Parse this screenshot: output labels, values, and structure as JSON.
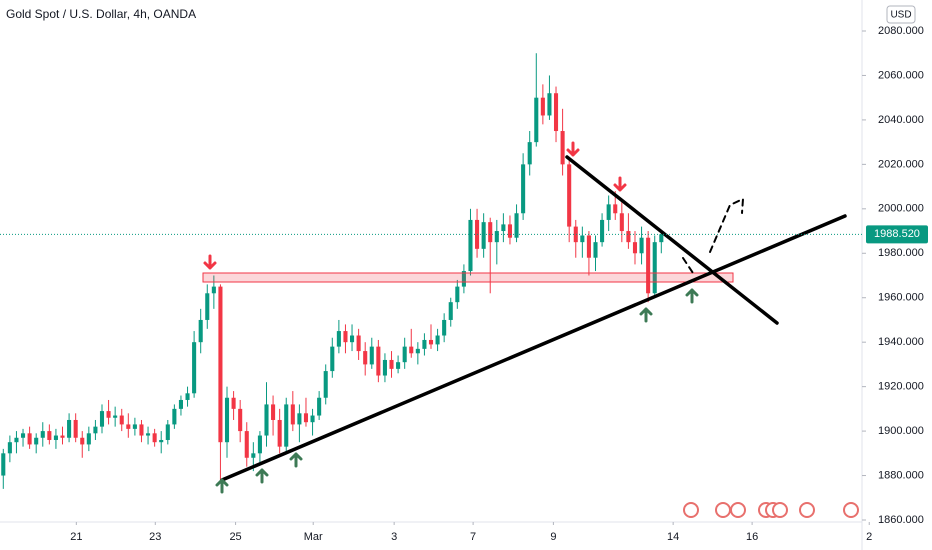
{
  "chart_data": {
    "type": "candlestick",
    "title": "Gold Spot / U.S. Dollar, 4h, OANDA",
    "currency": "USD",
    "up_color": "#089981",
    "down_color": "#f23645",
    "candles": [
      [
        1880,
        1892,
        1874,
        1890
      ],
      [
        1890,
        1898,
        1886,
        1895
      ],
      [
        1895,
        1900,
        1890,
        1897
      ],
      [
        1897,
        1901,
        1893,
        1899
      ],
      [
        1899,
        1902,
        1892,
        1894
      ],
      [
        1894,
        1899,
        1890,
        1897
      ],
      [
        1897,
        1904,
        1893,
        1900
      ],
      [
        1900,
        1903,
        1894,
        1896
      ],
      [
        1896,
        1901,
        1892,
        1898
      ],
      [
        1898,
        1902,
        1894,
        1897
      ],
      [
        1897,
        1908,
        1895,
        1905
      ],
      [
        1905,
        1908,
        1895,
        1897
      ],
      [
        1897,
        1900,
        1888,
        1894
      ],
      [
        1894,
        1902,
        1891,
        1899
      ],
      [
        1899,
        1905,
        1896,
        1902
      ],
      [
        1902,
        1912,
        1899,
        1909
      ],
      [
        1909,
        1914,
        1903,
        1906
      ],
      [
        1906,
        1911,
        1902,
        1907
      ],
      [
        1907,
        1910,
        1900,
        1903
      ],
      [
        1903,
        1908,
        1897,
        1901
      ],
      [
        1901,
        1906,
        1898,
        1903
      ],
      [
        1903,
        1905,
        1895,
        1898
      ],
      [
        1898,
        1902,
        1894,
        1899
      ],
      [
        1899,
        1901,
        1893,
        1895
      ],
      [
        1895,
        1900,
        1890,
        1896
      ],
      [
        1896,
        1905,
        1894,
        1903
      ],
      [
        1903,
        1912,
        1901,
        1910
      ],
      [
        1910,
        1916,
        1907,
        1914
      ],
      [
        1914,
        1920,
        1911,
        1917
      ],
      [
        1917,
        1945,
        1915,
        1940
      ],
      [
        1940,
        1955,
        1935,
        1950
      ],
      [
        1950,
        1966,
        1946,
        1962
      ],
      [
        1962,
        1970,
        1955,
        1965
      ],
      [
        1965,
        1966,
        1878,
        1895
      ],
      [
        1895,
        1920,
        1888,
        1915
      ],
      [
        1915,
        1918,
        1905,
        1910
      ],
      [
        1910,
        1914,
        1895,
        1900
      ],
      [
        1900,
        1904,
        1884,
        1888
      ],
      [
        1888,
        1895,
        1882,
        1890
      ],
      [
        1890,
        1900,
        1886,
        1898
      ],
      [
        1898,
        1922,
        1893,
        1912
      ],
      [
        1912,
        1916,
        1898,
        1905
      ],
      [
        1905,
        1910,
        1890,
        1893
      ],
      [
        1893,
        1915,
        1890,
        1912
      ],
      [
        1912,
        1918,
        1900,
        1903
      ],
      [
        1903,
        1912,
        1895,
        1908
      ],
      [
        1908,
        1915,
        1902,
        1904
      ],
      [
        1904,
        1910,
        1898,
        1907
      ],
      [
        1907,
        1918,
        1905,
        1915
      ],
      [
        1915,
        1930,
        1912,
        1927
      ],
      [
        1927,
        1942,
        1924,
        1938
      ],
      [
        1938,
        1950,
        1935,
        1945
      ],
      [
        1945,
        1948,
        1935,
        1940
      ],
      [
        1940,
        1948,
        1936,
        1943
      ],
      [
        1943,
        1946,
        1932,
        1936
      ],
      [
        1936,
        1940,
        1925,
        1930
      ],
      [
        1930,
        1942,
        1928,
        1938
      ],
      [
        1938,
        1941,
        1922,
        1925
      ],
      [
        1925,
        1935,
        1922,
        1932
      ],
      [
        1932,
        1936,
        1924,
        1928
      ],
      [
        1928,
        1934,
        1926,
        1931
      ],
      [
        1931,
        1942,
        1928,
        1938
      ],
      [
        1938,
        1946,
        1933,
        1935
      ],
      [
        1935,
        1940,
        1930,
        1937
      ],
      [
        1937,
        1944,
        1934,
        1941
      ],
      [
        1941,
        1948,
        1937,
        1939
      ],
      [
        1939,
        1946,
        1936,
        1943
      ],
      [
        1943,
        1953,
        1940,
        1950
      ],
      [
        1950,
        1960,
        1947,
        1958
      ],
      [
        1958,
        1968,
        1955,
        1965
      ],
      [
        1965,
        1975,
        1962,
        1972
      ],
      [
        1972,
        2000,
        1970,
        1995
      ],
      [
        1995,
        2000,
        1978,
        1982
      ],
      [
        1982,
        1998,
        1978,
        1994
      ],
      [
        1994,
        1996,
        1962,
        1985
      ],
      [
        1985,
        1995,
        1975,
        1990
      ],
      [
        1990,
        1998,
        1985,
        1993
      ],
      [
        1993,
        1997,
        1984,
        1987
      ],
      [
        1987,
        2002,
        1985,
        1998
      ],
      [
        1998,
        2025,
        1995,
        2020
      ],
      [
        2020,
        2035,
        2015,
        2030
      ],
      [
        2030,
        2070,
        2028,
        2050
      ],
      [
        2050,
        2056,
        2038,
        2042
      ],
      [
        2042,
        2060,
        2040,
        2052
      ],
      [
        2052,
        2055,
        2030,
        2035
      ],
      [
        2035,
        2045,
        2015,
        2020
      ],
      [
        2020,
        2023,
        1985,
        1992
      ],
      [
        1992,
        1995,
        1978,
        1985
      ],
      [
        1985,
        1992,
        1978,
        1988
      ],
      [
        1988,
        1990,
        1970,
        1978
      ],
      [
        1978,
        1988,
        1972,
        1985
      ],
      [
        1985,
        1998,
        1983,
        1995
      ],
      [
        1995,
        2006,
        1990,
        2002
      ],
      [
        2002,
        2008,
        1995,
        1998
      ],
      [
        1998,
        2003,
        1985,
        1990
      ],
      [
        1990,
        1998,
        1982,
        1985
      ],
      [
        1985,
        1990,
        1975,
        1980
      ],
      [
        1980,
        1992,
        1975,
        1987
      ],
      [
        1987,
        1990,
        1958,
        1962
      ],
      [
        1962,
        1988,
        1960,
        1985
      ],
      [
        1985,
        1990,
        1980,
        1988.52
      ]
    ],
    "last_price": {
      "value": 1988.52,
      "label": "1988.520"
    },
    "ylim": [
      1860,
      2080
    ],
    "yticks": [
      {
        "value": 1860,
        "label": "1860.000"
      },
      {
        "value": 1880,
        "label": "1880.000"
      },
      {
        "value": 1900,
        "label": "1900.000"
      },
      {
        "value": 1920,
        "label": "1920.000"
      },
      {
        "value": 1940,
        "label": "1940.000"
      },
      {
        "value": 1960,
        "label": "1960.000"
      },
      {
        "value": 1980,
        "label": "1980.000"
      },
      {
        "value": 2000,
        "label": "2000.000"
      },
      {
        "value": 2020,
        "label": "2020.000"
      },
      {
        "value": 2040,
        "label": "2040.000"
      },
      {
        "value": 2060,
        "label": "2060.000"
      },
      {
        "value": 2080,
        "label": "2080.000"
      }
    ],
    "xlim": [
      -0.5,
      130.5
    ],
    "xticks": [
      {
        "value": 11.1,
        "label": "21"
      },
      {
        "value": 23.1,
        "label": "23"
      },
      {
        "value": 35.3,
        "label": "25"
      },
      {
        "value": 47.1,
        "label": "Mar"
      },
      {
        "value": 59.4,
        "label": "3"
      },
      {
        "value": 71.4,
        "label": "7"
      },
      {
        "value": 83.6,
        "label": "9"
      },
      {
        "value": 101.8,
        "label": "14"
      },
      {
        "value": 113.8,
        "label": "16"
      },
      {
        "value": 131.6,
        "label": "2"
      }
    ]
  }
}
